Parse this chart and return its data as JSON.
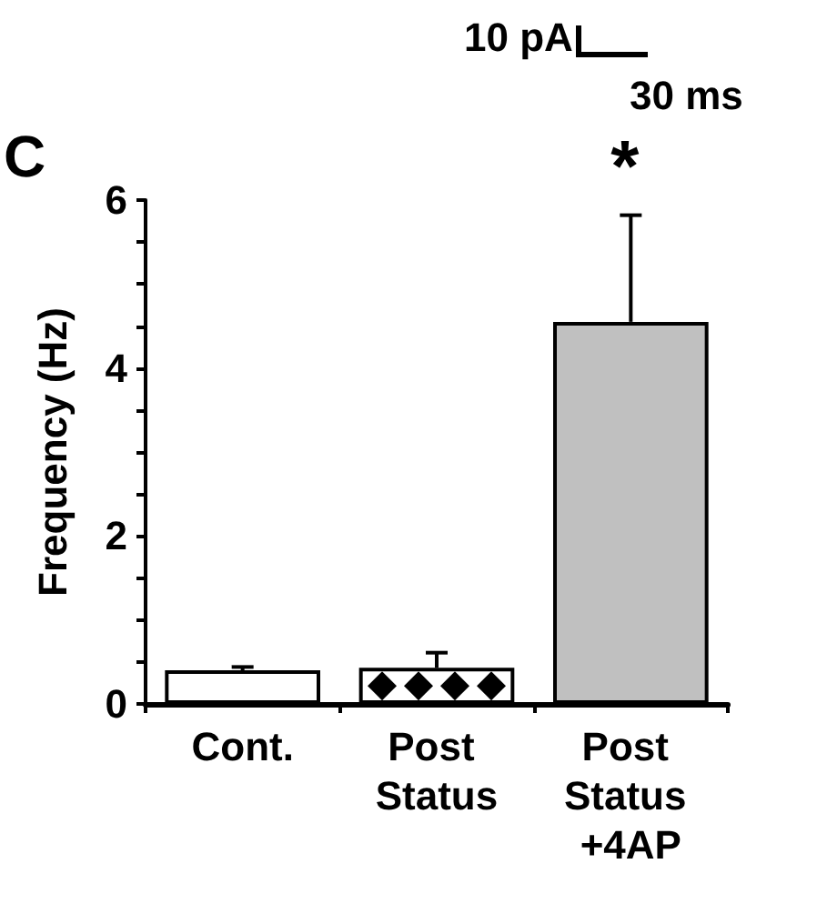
{
  "chart_data": {
    "type": "bar",
    "ylabel": "Frequency (Hz)",
    "categories": [
      "Cont.",
      "Post Status",
      "Post Status +4AP"
    ],
    "values": [
      0.4,
      0.43,
      4.55
    ],
    "colors": [
      "#ffffff",
      "#ffffff",
      "#c0c0c0"
    ],
    "errors": [
      [
        0.4,
        0.44
      ],
      [
        0.43,
        0.61
      ],
      [
        4.55,
        5.82
      ]
    ],
    "ylim": [
      0,
      6
    ],
    "yticks": [
      0,
      {
        "value": 0.5,
        "label": null
      },
      {
        "value": 1,
        "label": null
      },
      {
        "value": 1.5,
        "label": null
      },
      2,
      {
        "value": 2.5,
        "label": null
      },
      {
        "value": 3,
        "label": null
      },
      {
        "value": 3.5,
        "label": null
      },
      4,
      {
        "value": 4.5,
        "label": null
      },
      {
        "value": 5,
        "label": null
      },
      {
        "value": 5.5,
        "label": null
      },
      6
    ],
    "annotations": [
      "C",
      "10 pA",
      "30 ms",
      {
        "text": "*",
        "x": "Post Status +4AP",
        "y": 5.82
      }
    ],
    "grid": false
  }
}
